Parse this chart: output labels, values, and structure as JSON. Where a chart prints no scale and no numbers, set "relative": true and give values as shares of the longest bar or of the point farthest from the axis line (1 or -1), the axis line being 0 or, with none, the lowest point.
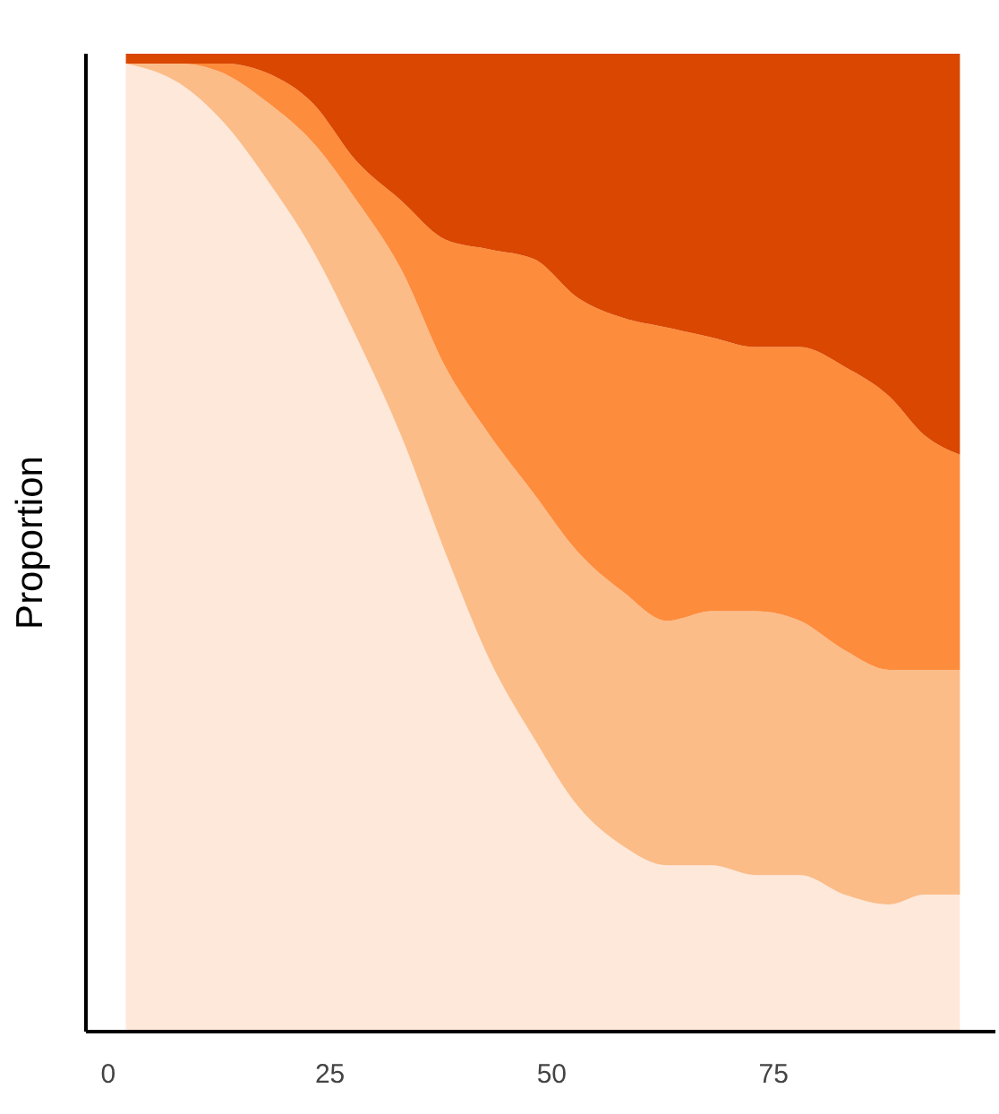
{
  "chart_data": {
    "type": "area",
    "stacked": true,
    "relative": true,
    "ylabel": "Proportion",
    "tick_labels": "x",
    "grid": false,
    "legend": false,
    "x": [
      2,
      8,
      13,
      18,
      23,
      28,
      33,
      38,
      43,
      48,
      53,
      58,
      63,
      68,
      73,
      78,
      83,
      88,
      92,
      96
    ],
    "xlim": [
      -2.5,
      100
    ],
    "xticks": [
      0,
      25,
      50,
      75
    ],
    "series": [
      {
        "color": "#fde8da",
        "values": [
          0.99,
          0.97,
          0.93,
          0.87,
          0.8,
          0.71,
          0.61,
          0.49,
          0.38,
          0.3,
          0.23,
          0.19,
          0.17,
          0.17,
          0.16,
          0.16,
          0.14,
          0.13,
          0.14,
          0.14
        ]
      },
      {
        "color": "#fbbc88",
        "values": [
          0.0,
          0.02,
          0.05,
          0.08,
          0.11,
          0.14,
          0.17,
          0.19,
          0.23,
          0.25,
          0.26,
          0.26,
          0.25,
          0.26,
          0.27,
          0.26,
          0.25,
          0.24,
          0.23,
          0.23
        ]
      },
      {
        "color": "#fd8c3c",
        "values": [
          0.0,
          0.0,
          0.01,
          0.03,
          0.04,
          0.04,
          0.07,
          0.13,
          0.19,
          0.24,
          0.26,
          0.28,
          0.3,
          0.28,
          0.27,
          0.28,
          0.29,
          0.28,
          0.24,
          0.22
        ]
      },
      {
        "color": "#d94701",
        "values": [
          0.01,
          0.01,
          0.01,
          0.02,
          0.05,
          0.11,
          0.15,
          0.19,
          0.2,
          0.21,
          0.25,
          0.27,
          0.28,
          0.29,
          0.3,
          0.3,
          0.32,
          0.35,
          0.39,
          0.41
        ]
      }
    ]
  }
}
